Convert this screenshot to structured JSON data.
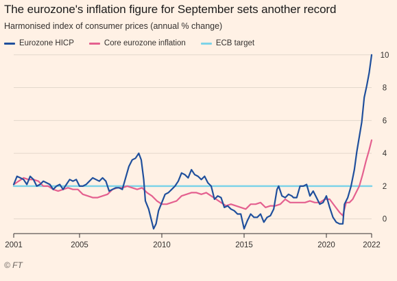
{
  "title": "The eurozone's inflation figure for September sets another record",
  "subtitle": "Harmonised index of consumer prices (annual % change)",
  "source": "© FT",
  "colors": {
    "background": "#fff1e5",
    "hicp": "#1f4f9c",
    "core": "#e4608f",
    "target": "#7dd3e8",
    "grid": "#e3d7cb",
    "axis": "#33302e"
  },
  "chart_data": {
    "type": "line",
    "xlabel": "",
    "ylabel": "",
    "xlim": [
      2001,
      2022.75
    ],
    "ylim": [
      -0.6,
      10.2
    ],
    "x_ticks": [
      {
        "value": 2001,
        "label": "2001"
      },
      {
        "value": 2005,
        "label": "2005"
      },
      {
        "value": 2010,
        "label": "2010"
      },
      {
        "value": 2015,
        "label": "2015"
      },
      {
        "value": 2020,
        "label": "2020"
      },
      {
        "value": 2022.75,
        "label": "2022"
      }
    ],
    "y_ticks": [
      0,
      2,
      4,
      6,
      8,
      10
    ],
    "y_axis_side": "right",
    "grid": "horizontal",
    "legend_position": "top",
    "series": [
      {
        "name": "Eurozone HICP",
        "color": "#1f4f9c",
        "points": [
          [
            2001.0,
            2.1
          ],
          [
            2001.2,
            2.6
          ],
          [
            2001.4,
            2.5
          ],
          [
            2001.6,
            2.4
          ],
          [
            2001.8,
            2.1
          ],
          [
            2002.0,
            2.6
          ],
          [
            2002.2,
            2.4
          ],
          [
            2002.4,
            2.0
          ],
          [
            2002.6,
            2.1
          ],
          [
            2002.8,
            2.3
          ],
          [
            2003.0,
            2.2
          ],
          [
            2003.2,
            2.1
          ],
          [
            2003.4,
            1.8
          ],
          [
            2003.6,
            2.0
          ],
          [
            2003.8,
            2.1
          ],
          [
            2004.0,
            1.8
          ],
          [
            2004.2,
            2.1
          ],
          [
            2004.4,
            2.4
          ],
          [
            2004.6,
            2.3
          ],
          [
            2004.8,
            2.4
          ],
          [
            2005.0,
            2.0
          ],
          [
            2005.2,
            2.0
          ],
          [
            2005.4,
            2.1
          ],
          [
            2005.6,
            2.3
          ],
          [
            2005.8,
            2.5
          ],
          [
            2006.0,
            2.4
          ],
          [
            2006.2,
            2.3
          ],
          [
            2006.4,
            2.5
          ],
          [
            2006.6,
            2.3
          ],
          [
            2006.8,
            1.7
          ],
          [
            2007.0,
            1.8
          ],
          [
            2007.2,
            1.9
          ],
          [
            2007.4,
            1.9
          ],
          [
            2007.6,
            1.8
          ],
          [
            2007.8,
            2.5
          ],
          [
            2008.0,
            3.2
          ],
          [
            2008.2,
            3.6
          ],
          [
            2008.4,
            3.7
          ],
          [
            2008.6,
            4.0
          ],
          [
            2008.75,
            3.6
          ],
          [
            2008.9,
            2.4
          ],
          [
            2009.0,
            1.1
          ],
          [
            2009.2,
            0.6
          ],
          [
            2009.35,
            0.0
          ],
          [
            2009.5,
            -0.6
          ],
          [
            2009.65,
            -0.3
          ],
          [
            2009.8,
            0.5
          ],
          [
            2010.0,
            1.0
          ],
          [
            2010.2,
            1.5
          ],
          [
            2010.4,
            1.6
          ],
          [
            2010.6,
            1.8
          ],
          [
            2010.8,
            2.0
          ],
          [
            2011.0,
            2.3
          ],
          [
            2011.2,
            2.8
          ],
          [
            2011.4,
            2.7
          ],
          [
            2011.6,
            2.5
          ],
          [
            2011.8,
            3.0
          ],
          [
            2012.0,
            2.7
          ],
          [
            2012.2,
            2.6
          ],
          [
            2012.4,
            2.4
          ],
          [
            2012.6,
            2.6
          ],
          [
            2012.8,
            2.2
          ],
          [
            2013.0,
            2.0
          ],
          [
            2013.2,
            1.2
          ],
          [
            2013.4,
            1.4
          ],
          [
            2013.6,
            1.3
          ],
          [
            2013.8,
            0.7
          ],
          [
            2014.0,
            0.8
          ],
          [
            2014.2,
            0.6
          ],
          [
            2014.4,
            0.5
          ],
          [
            2014.6,
            0.3
          ],
          [
            2014.8,
            0.3
          ],
          [
            2015.0,
            -0.6
          ],
          [
            2015.2,
            -0.1
          ],
          [
            2015.4,
            0.3
          ],
          [
            2015.6,
            0.1
          ],
          [
            2015.8,
            0.1
          ],
          [
            2016.0,
            0.3
          ],
          [
            2016.2,
            -0.2
          ],
          [
            2016.4,
            0.1
          ],
          [
            2016.6,
            0.2
          ],
          [
            2016.8,
            0.6
          ],
          [
            2017.0,
            1.8
          ],
          [
            2017.1,
            2.0
          ],
          [
            2017.3,
            1.4
          ],
          [
            2017.5,
            1.3
          ],
          [
            2017.7,
            1.5
          ],
          [
            2017.9,
            1.4
          ],
          [
            2018.0,
            1.3
          ],
          [
            2018.2,
            1.3
          ],
          [
            2018.4,
            2.0
          ],
          [
            2018.6,
            2.0
          ],
          [
            2018.8,
            2.1
          ],
          [
            2019.0,
            1.4
          ],
          [
            2019.2,
            1.7
          ],
          [
            2019.4,
            1.3
          ],
          [
            2019.6,
            0.9
          ],
          [
            2019.8,
            1.0
          ],
          [
            2020.0,
            1.4
          ],
          [
            2020.2,
            0.7
          ],
          [
            2020.4,
            0.1
          ],
          [
            2020.6,
            -0.2
          ],
          [
            2020.8,
            -0.3
          ],
          [
            2021.0,
            -0.3
          ],
          [
            2021.1,
            0.9
          ],
          [
            2021.3,
            1.3
          ],
          [
            2021.5,
            2.0
          ],
          [
            2021.7,
            3.0
          ],
          [
            2021.85,
            4.1
          ],
          [
            2022.0,
            5.0
          ],
          [
            2022.15,
            5.9
          ],
          [
            2022.3,
            7.4
          ],
          [
            2022.45,
            8.1
          ],
          [
            2022.6,
            8.9
          ],
          [
            2022.75,
            10.0
          ]
        ]
      },
      {
        "name": "Core eurozone inflation",
        "color": "#e4608f",
        "points": [
          [
            2001.0,
            2.1
          ],
          [
            2001.3,
            2.3
          ],
          [
            2001.6,
            2.5
          ],
          [
            2001.9,
            2.4
          ],
          [
            2002.2,
            2.4
          ],
          [
            2002.5,
            2.3
          ],
          [
            2002.8,
            2.0
          ],
          [
            2003.1,
            2.0
          ],
          [
            2003.4,
            1.8
          ],
          [
            2003.7,
            1.7
          ],
          [
            2004.0,
            1.8
          ],
          [
            2004.3,
            1.9
          ],
          [
            2004.6,
            1.8
          ],
          [
            2004.9,
            1.8
          ],
          [
            2005.2,
            1.5
          ],
          [
            2005.5,
            1.4
          ],
          [
            2005.8,
            1.3
          ],
          [
            2006.1,
            1.3
          ],
          [
            2006.4,
            1.4
          ],
          [
            2006.7,
            1.5
          ],
          [
            2007.0,
            1.8
          ],
          [
            2007.3,
            1.9
          ],
          [
            2007.6,
            1.9
          ],
          [
            2007.9,
            2.0
          ],
          [
            2008.2,
            1.9
          ],
          [
            2008.5,
            1.8
          ],
          [
            2008.8,
            1.9
          ],
          [
            2009.1,
            1.6
          ],
          [
            2009.4,
            1.4
          ],
          [
            2009.7,
            1.1
          ],
          [
            2010.0,
            0.9
          ],
          [
            2010.3,
            0.9
          ],
          [
            2010.6,
            1.0
          ],
          [
            2010.9,
            1.1
          ],
          [
            2011.2,
            1.4
          ],
          [
            2011.5,
            1.5
          ],
          [
            2011.8,
            1.6
          ],
          [
            2012.1,
            1.6
          ],
          [
            2012.4,
            1.5
          ],
          [
            2012.7,
            1.6
          ],
          [
            2013.0,
            1.4
          ],
          [
            2013.3,
            1.2
          ],
          [
            2013.6,
            1.0
          ],
          [
            2013.9,
            0.8
          ],
          [
            2014.2,
            0.9
          ],
          [
            2014.5,
            0.8
          ],
          [
            2014.8,
            0.7
          ],
          [
            2015.1,
            0.6
          ],
          [
            2015.4,
            0.9
          ],
          [
            2015.7,
            0.9
          ],
          [
            2016.0,
            1.0
          ],
          [
            2016.3,
            0.7
          ],
          [
            2016.6,
            0.8
          ],
          [
            2016.9,
            0.8
          ],
          [
            2017.2,
            0.9
          ],
          [
            2017.5,
            1.2
          ],
          [
            2017.8,
            1.0
          ],
          [
            2018.1,
            1.0
          ],
          [
            2018.4,
            1.0
          ],
          [
            2018.7,
            1.0
          ],
          [
            2019.0,
            1.1
          ],
          [
            2019.3,
            1.0
          ],
          [
            2019.6,
            1.0
          ],
          [
            2019.9,
            1.2
          ],
          [
            2020.2,
            1.2
          ],
          [
            2020.5,
            0.8
          ],
          [
            2020.8,
            0.4
          ],
          [
            2021.0,
            0.2
          ],
          [
            2021.2,
            1.0
          ],
          [
            2021.4,
            1.0
          ],
          [
            2021.6,
            1.2
          ],
          [
            2021.8,
            1.6
          ],
          [
            2022.0,
            2.0
          ],
          [
            2022.2,
            2.7
          ],
          [
            2022.4,
            3.5
          ],
          [
            2022.6,
            4.2
          ],
          [
            2022.75,
            4.8
          ]
        ]
      },
      {
        "name": "ECB target",
        "color": "#7dd3e8",
        "points": [
          [
            2001.0,
            2.0
          ],
          [
            2022.75,
            2.0
          ]
        ]
      }
    ]
  }
}
